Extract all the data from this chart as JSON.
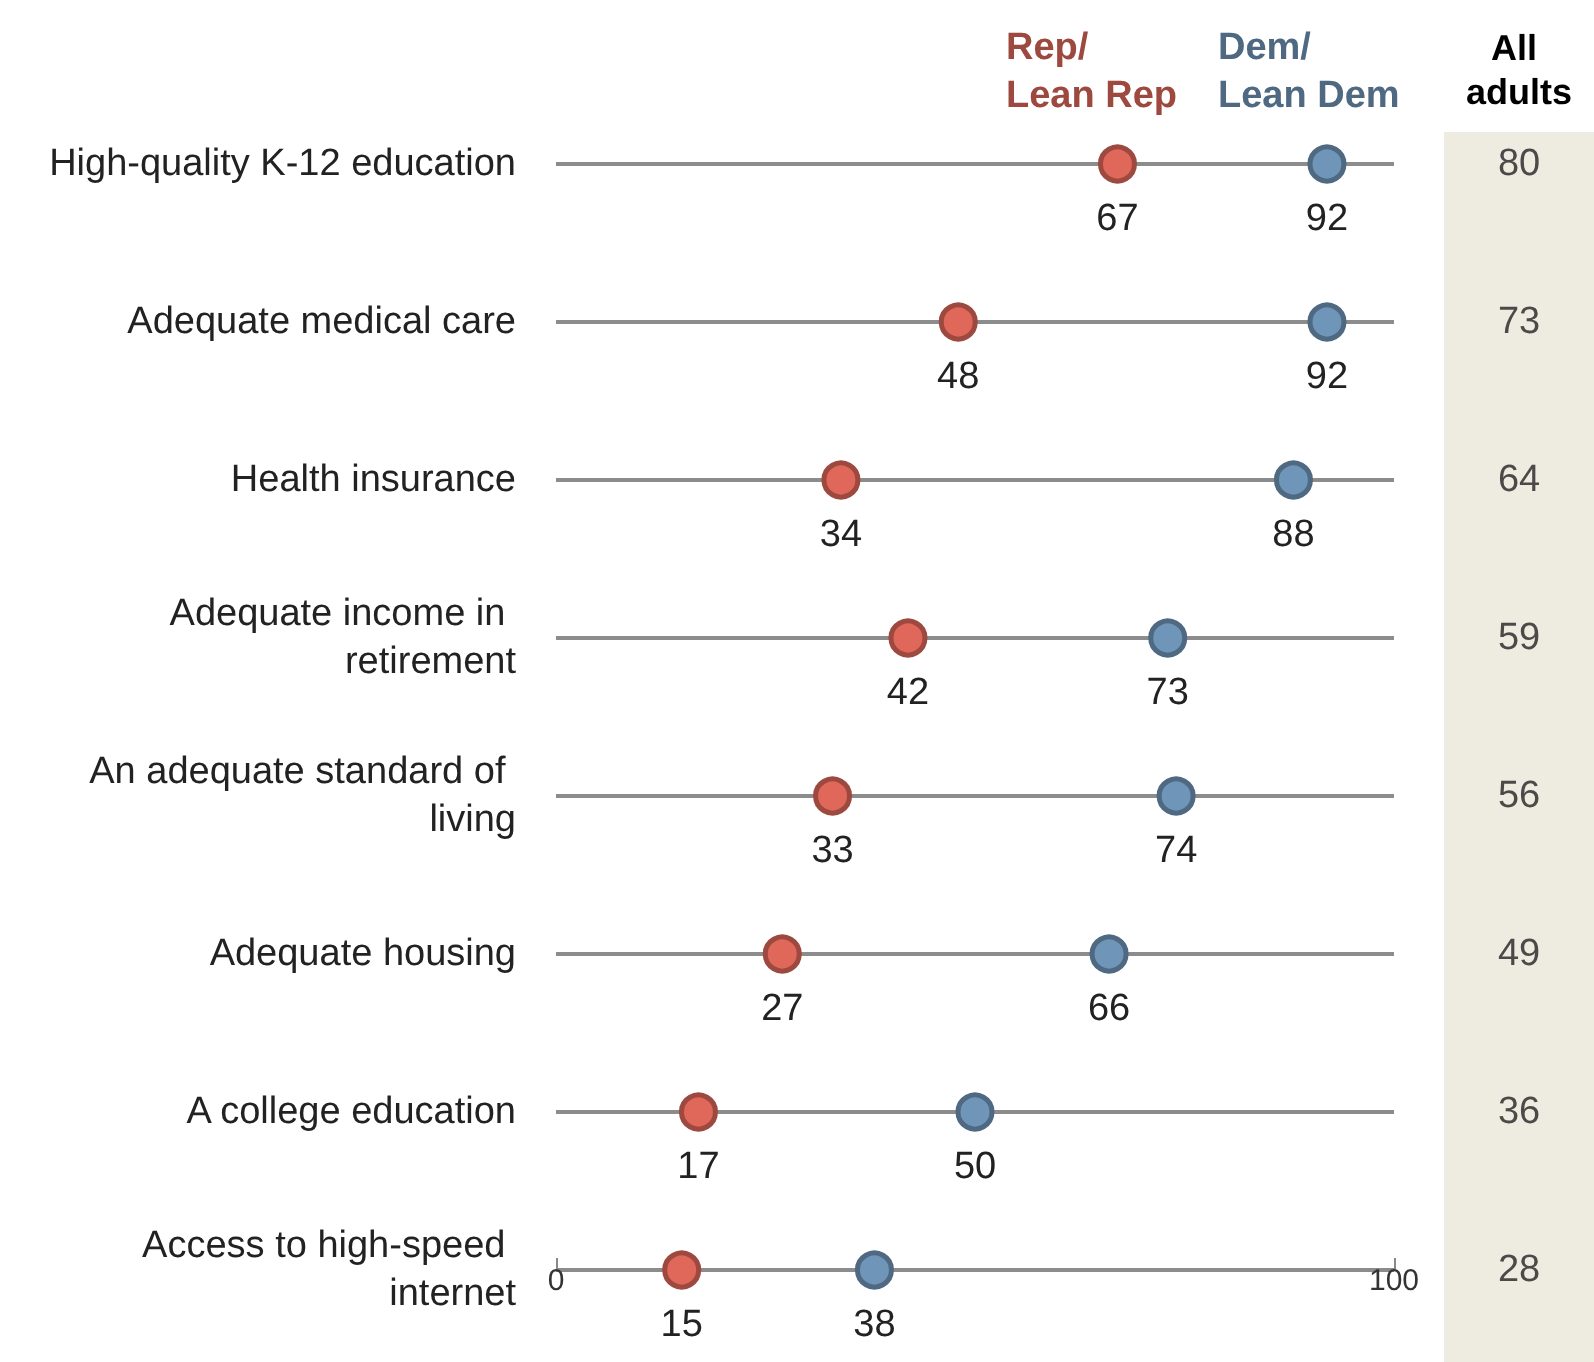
{
  "chart_data": [
    {
      "type": "scatter",
      "orientation": "horizontal",
      "categories": [
        "High-quality K-12 education",
        "Adequate medical care",
        "Health insurance",
        "Adequate income in retirement",
        "An adequate standard of living",
        "Adequate housing",
        "A college education",
        "Access to high-speed internet"
      ],
      "series": [
        {
          "name": "Rep/ Lean Rep",
          "color": "#e0685a",
          "values": [
            67,
            48,
            34,
            42,
            33,
            27,
            17,
            15
          ]
        },
        {
          "name": "Dem/ Lean Dem",
          "color": "#6f96b8",
          "values": [
            92,
            92,
            88,
            73,
            74,
            66,
            50,
            38
          ]
        }
      ],
      "xlim": [
        0,
        100
      ],
      "xticks": [
        0,
        100
      ],
      "grid": "y",
      "marker": "circle",
      "data_labels": true
    },
    {
      "type": "other",
      "title": "All adults",
      "categories": [
        null,
        null,
        null,
        null,
        null,
        null,
        null,
        null
      ],
      "values": [
        80,
        73,
        64,
        59,
        56,
        49,
        36,
        28
      ],
      "data_labels": true
    }
  ]
}
